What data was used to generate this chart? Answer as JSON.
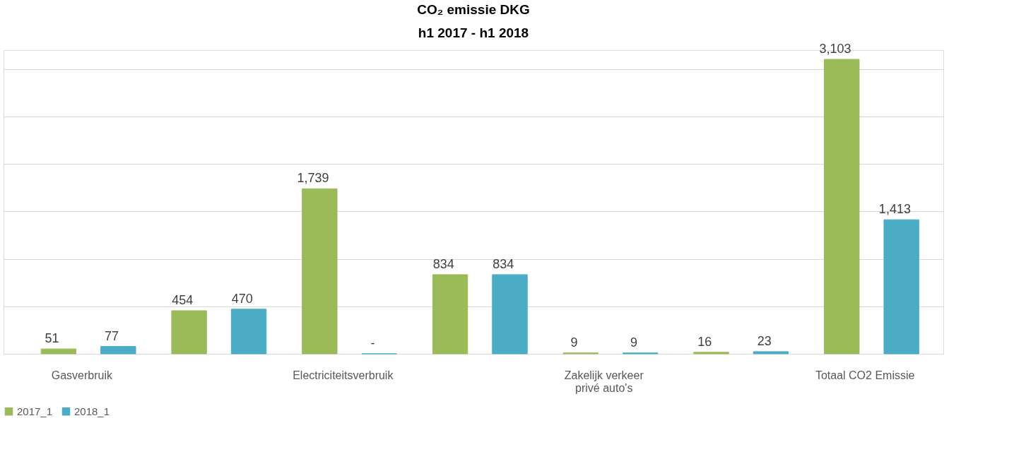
{
  "chart_data": {
    "type": "bar",
    "title": "CO₂ emissie DKG",
    "subtitle": "h1 2017 - h1 2018",
    "categories": [
      "Gasverbruik",
      null,
      "Electriciteitsverbruik",
      null,
      "Zakelijk verkeer privé auto's",
      null,
      "Totaal CO2 Emissie"
    ],
    "series": [
      {
        "name": "2017_1",
        "color": "#9bbb59",
        "values": [
          51,
          454,
          1739,
          834,
          9,
          16,
          3103
        ],
        "value_labels": [
          "51",
          "454",
          "1,739",
          "834",
          "9",
          "16",
          "3,103"
        ]
      },
      {
        "name": "2018_1",
        "color": "#4bacc6",
        "values": [
          77,
          470,
          0,
          834,
          9,
          23,
          1413
        ],
        "value_labels": [
          "77",
          "470",
          "-",
          "834",
          "9",
          "23",
          "1,413"
        ]
      }
    ],
    "ylim": [
      0,
      3200
    ],
    "yticks": [
      {
        "value": 0,
        "label": null
      },
      {
        "value": 500,
        "label": null
      },
      {
        "value": 1000,
        "label": null
      },
      {
        "value": 1500,
        "label": null
      },
      {
        "value": 2000,
        "label": null
      },
      {
        "value": 2500,
        "label": null
      },
      {
        "value": 3000,
        "label": null
      }
    ],
    "tick_labels": "x",
    "grid": "y",
    "legend": "bottom"
  }
}
